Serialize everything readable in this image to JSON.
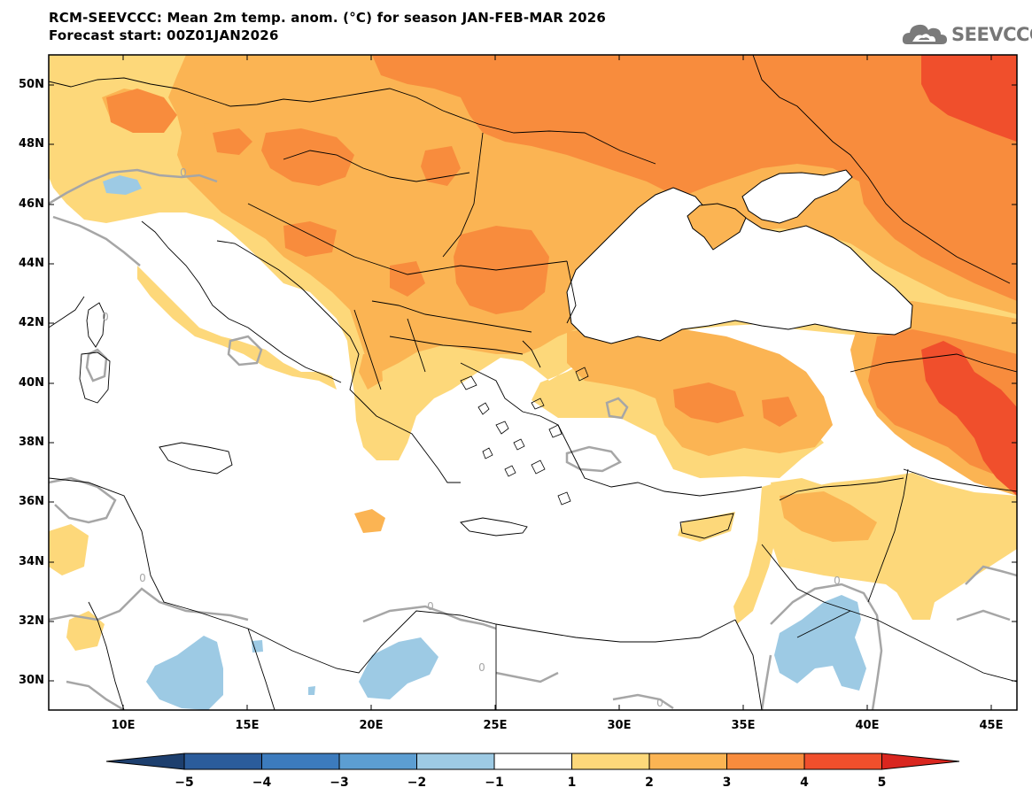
{
  "title": {
    "line1": "RCM-SEEVCCC: Mean 2m temp. anom. (°C) for season JAN-FEB-MAR 2026",
    "line2": "Forecast start: 00Z01JAN2026"
  },
  "logo": {
    "text": "SEEVCCC",
    "icon": "cloud-logo-icon"
  },
  "map": {
    "variable": "Mean 2m temperature anomaly",
    "units": "°C",
    "season": "JAN-FEB-MAR 2026",
    "lat_labels": [
      "50N",
      "48N",
      "46N",
      "44N",
      "42N",
      "40N",
      "38N",
      "36N",
      "34N",
      "32N",
      "30N"
    ],
    "lon_labels": [
      "10E",
      "15E",
      "20E",
      "25E",
      "30E",
      "35E",
      "40E",
      "45E"
    ],
    "contour_label": "0"
  },
  "colorbar": {
    "labels": [
      "-5",
      "-4",
      "-3",
      "-2",
      "-1",
      "1",
      "2",
      "3",
      "4",
      "5"
    ],
    "colors": [
      "#2b5c9b",
      "#3c7bbd",
      "#5c9ed2",
      "#9dcae4",
      "#ffffff",
      "#fdd87a",
      "#fbb453",
      "#f88c3d",
      "#f04f2c"
    ],
    "low_extend_color": "#1d3f6e",
    "high_extend_color": "#d9261f"
  },
  "colors": {
    "anom_1_2": "#fdd87a",
    "anom_2_3": "#fbb453",
    "anom_3_4": "#f88c3d",
    "anom_4_5": "#f04f2c",
    "anom_neg_1_2": "#9dcae4",
    "zero_contour": "#a6a6a6"
  }
}
